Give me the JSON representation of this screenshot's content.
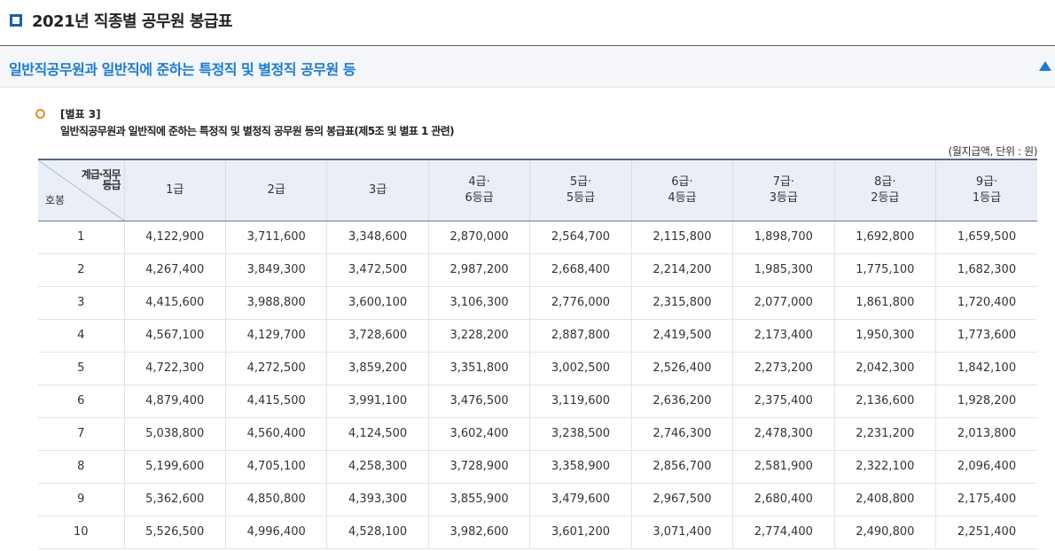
{
  "header": {
    "title": "2021년 직종별 공무원 봉급표"
  },
  "section": {
    "title": "일반직공무원과 일반직에 준하는 특정직 및 별정직 공무원 등"
  },
  "note": {
    "label": "[별표 3]",
    "description": "일반직공무원과 일반직에 준하는 특정직 및 별정직 공무원 등의 봉급표(제5조 및 별표 1 관련)"
  },
  "unit": "(월지급액, 단위 : 원)",
  "table": {
    "corner_top_line1": "계급·직무",
    "corner_top_line2": "등급",
    "corner_bottom": "호봉",
    "columns": [
      [
        "1급"
      ],
      [
        "2급"
      ],
      [
        "3급"
      ],
      [
        "4급·",
        "6등급"
      ],
      [
        "5급·",
        "5등급"
      ],
      [
        "6급·",
        "4등급"
      ],
      [
        "7급·",
        "3등급"
      ],
      [
        "8급·",
        "2등급"
      ],
      [
        "9급·",
        "1등급"
      ]
    ],
    "rows": [
      [
        "1",
        "4,122,900",
        "3,711,600",
        "3,348,600",
        "2,870,000",
        "2,564,700",
        "2,115,800",
        "1,898,700",
        "1,692,800",
        "1,659,500"
      ],
      [
        "2",
        "4,267,400",
        "3,849,300",
        "3,472,500",
        "2,987,200",
        "2,668,400",
        "2,214,200",
        "1,985,300",
        "1,775,100",
        "1,682,300"
      ],
      [
        "3",
        "4,415,600",
        "3,988,800",
        "3,600,100",
        "3,106,300",
        "2,776,000",
        "2,315,800",
        "2,077,000",
        "1,861,800",
        "1,720,400"
      ],
      [
        "4",
        "4,567,100",
        "4,129,700",
        "3,728,600",
        "3,228,200",
        "2,887,800",
        "2,419,500",
        "2,173,400",
        "1,950,300",
        "1,773,600"
      ],
      [
        "5",
        "4,722,300",
        "4,272,500",
        "3,859,200",
        "3,351,800",
        "3,002,500",
        "2,526,400",
        "2,273,200",
        "2,042,300",
        "1,842,100"
      ],
      [
        "6",
        "4,879,400",
        "4,415,500",
        "3,991,100",
        "3,476,500",
        "3,119,600",
        "2,636,200",
        "2,375,400",
        "2,136,600",
        "1,928,200"
      ],
      [
        "7",
        "5,038,800",
        "4,560,400",
        "4,124,500",
        "3,602,400",
        "3,238,500",
        "2,746,300",
        "2,478,300",
        "2,231,200",
        "2,013,800"
      ],
      [
        "8",
        "5,199,600",
        "4,705,100",
        "4,258,300",
        "3,728,900",
        "3,358,900",
        "2,856,700",
        "2,581,900",
        "2,322,100",
        "2,096,400"
      ],
      [
        "9",
        "5,362,600",
        "4,850,800",
        "4,393,300",
        "3,855,900",
        "3,479,600",
        "2,967,500",
        "2,680,400",
        "2,408,800",
        "2,175,400"
      ],
      [
        "10",
        "5,526,500",
        "4,996,400",
        "4,528,100",
        "3,982,600",
        "3,601,200",
        "3,071,400",
        "2,774,400",
        "2,490,800",
        "2,251,400"
      ]
    ]
  }
}
